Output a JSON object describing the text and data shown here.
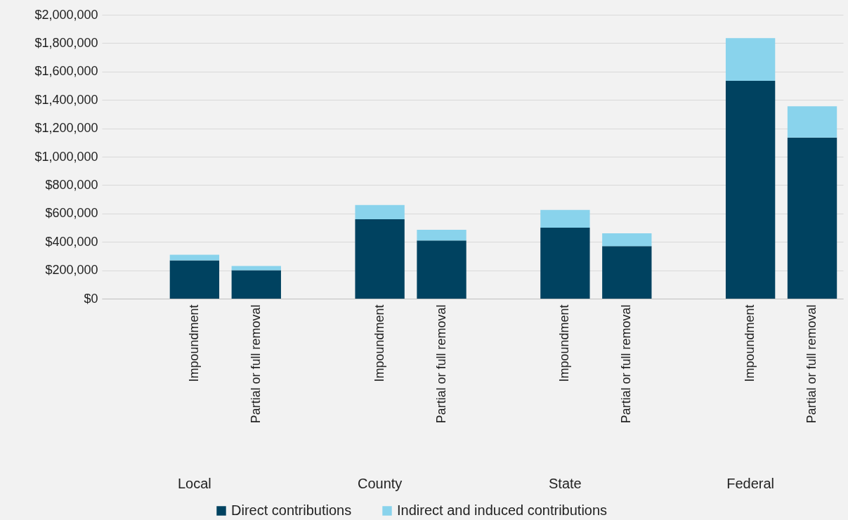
{
  "chart_data": {
    "type": "bar",
    "stacked": true,
    "categories": [
      null,
      "Impoundment",
      "Partial or full removal",
      null,
      "Impoundment",
      "Partial or full removal",
      null,
      "Impoundment",
      "Partial or full removal",
      null,
      "Impoundment",
      "Partial or full removal"
    ],
    "series": [
      {
        "name": "Direct contributions",
        "color": "#004260",
        "values": [
          null,
          270000,
          200000,
          null,
          560000,
          410000,
          null,
          500000,
          370000,
          null,
          1535000,
          1135000
        ]
      },
      {
        "name": "Indirect and induced contributions",
        "color": "#89d3ec",
        "values": [
          null,
          40000,
          30000,
          null,
          100000,
          75000,
          null,
          125000,
          90000,
          null,
          300000,
          220000
        ]
      }
    ],
    "annotations": [
      "Local",
      "County",
      "State",
      "Federal"
    ],
    "ylim": [
      0,
      2000000
    ],
    "yticks": [
      {
        "value": 0,
        "label": "$0"
      },
      {
        "value": 200000,
        "label": "$200,000"
      },
      {
        "value": 400000,
        "label": "$400,000"
      },
      {
        "value": 600000,
        "label": "$600,000"
      },
      {
        "value": 800000,
        "label": "$800,000"
      },
      {
        "value": 1000000,
        "label": "$1,000,000"
      },
      {
        "value": 1200000,
        "label": "$1,200,000"
      },
      {
        "value": 1400000,
        "label": "$1,400,000"
      },
      {
        "value": 1600000,
        "label": "$1,600,000"
      },
      {
        "value": 1800000,
        "label": "$1,800,000"
      },
      {
        "value": 2000000,
        "label": "$2,000,000"
      }
    ],
    "grid": "y",
    "legend": "bottom"
  }
}
